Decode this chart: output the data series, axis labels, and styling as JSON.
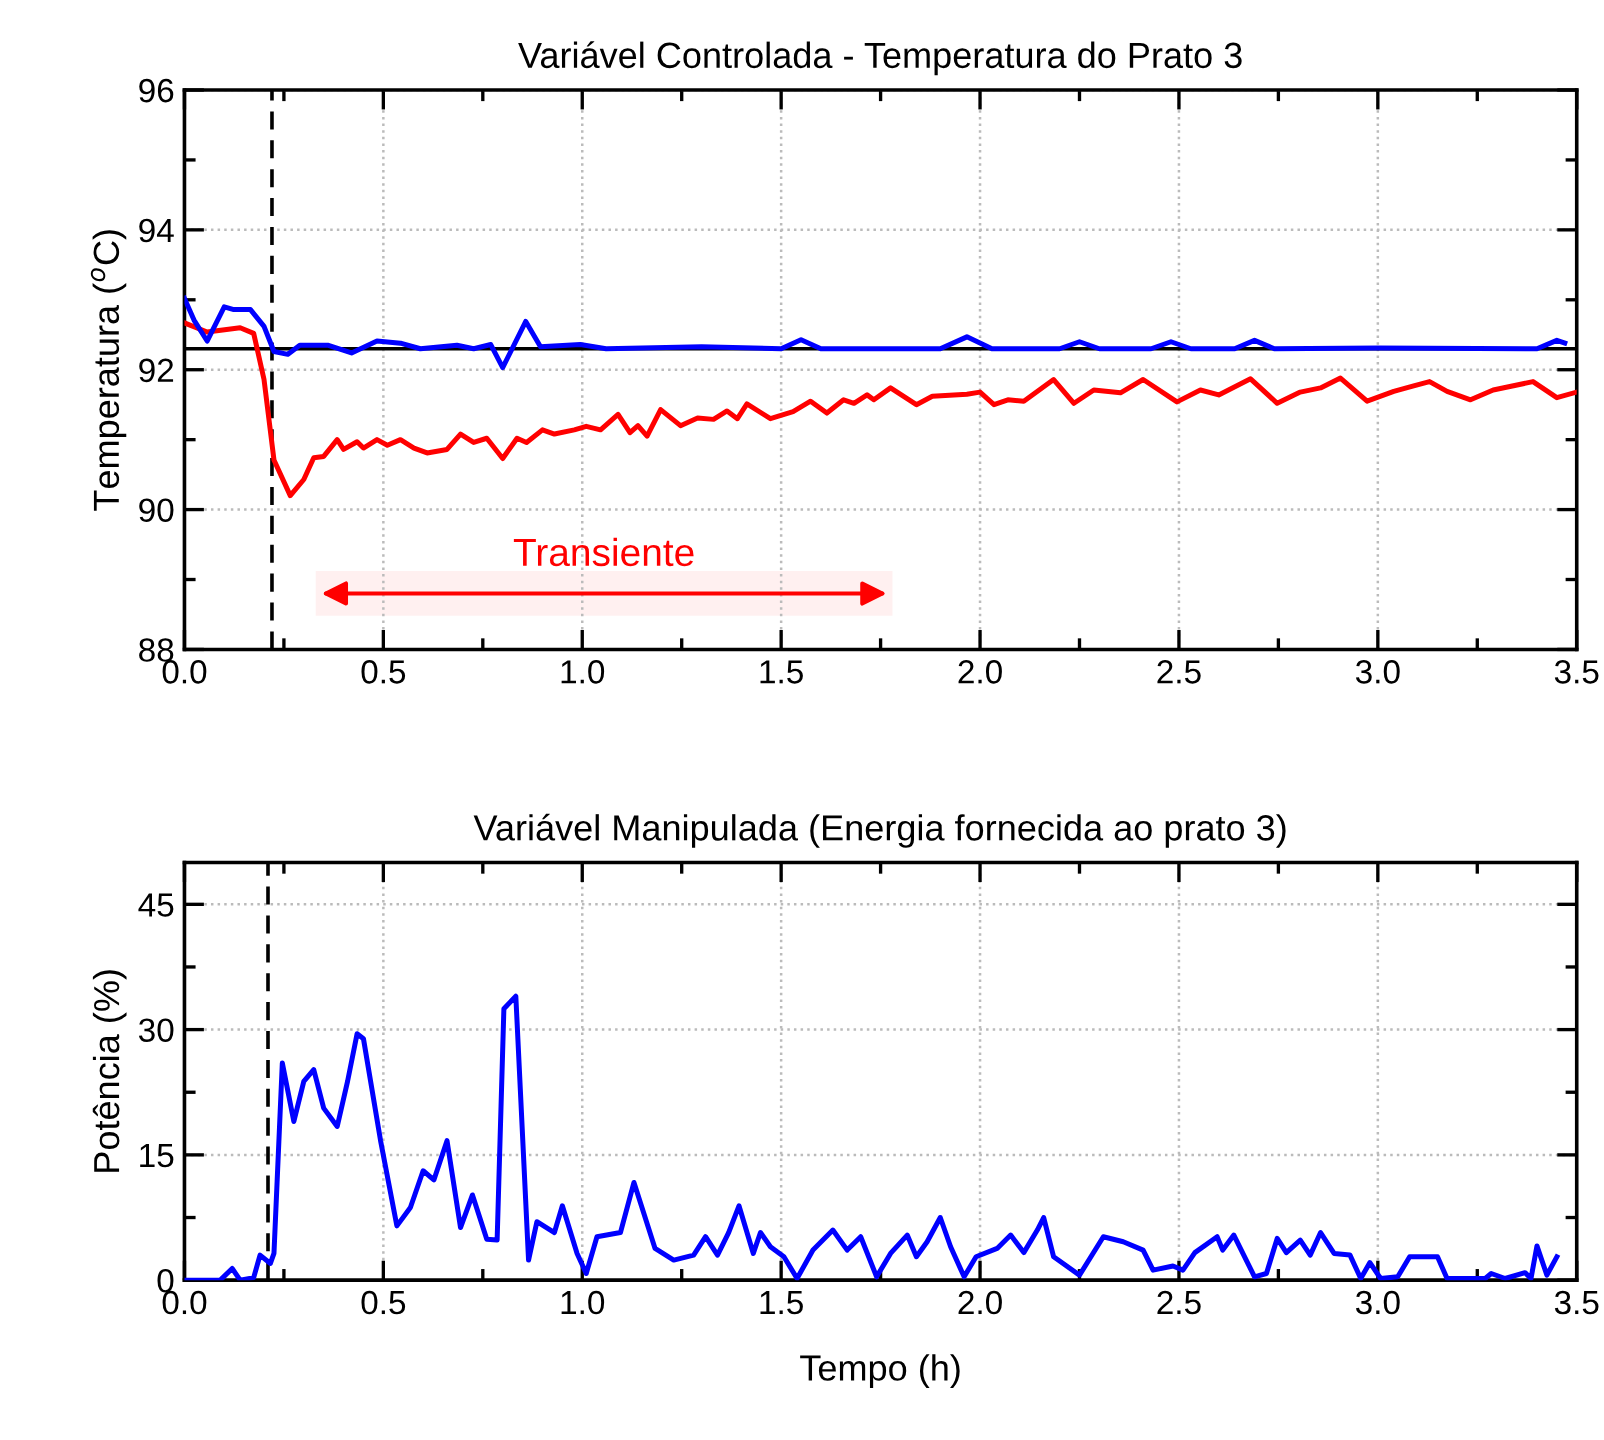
{
  "chart_data": [
    {
      "type": "line",
      "title": "Variável Controlada - Temperatura do Prato 3",
      "ylabel": "Temperatura ($^{o}$C)",
      "xlim": [
        0,
        3.5
      ],
      "xticks": [
        {
          "value": 0,
          "label": "0.0"
        },
        0.5,
        {
          "value": 1,
          "label": "1.0"
        },
        1.5,
        {
          "value": 2,
          "label": "2.0"
        },
        2.5,
        {
          "value": 3,
          "label": "3.0"
        },
        3.5
      ],
      "ylim": [
        88,
        96
      ],
      "yticks": [
        88,
        90,
        92,
        94,
        96
      ],
      "grid": true,
      "line_style": "solid",
      "marker": "none",
      "series": [
        {
          "color": "#ff0000",
          "x": [
            0,
            0.057,
            0.14,
            0.174,
            0.2,
            0.225,
            0.266,
            0.3,
            0.325,
            0.35,
            0.384,
            0.4,
            0.434,
            0.45,
            0.484,
            0.51,
            0.543,
            0.577,
            0.61,
            0.66,
            0.694,
            0.727,
            0.76,
            0.8,
            0.836,
            0.86,
            0.9,
            0.93,
            0.98,
            1.01,
            1.046,
            1.09,
            1.12,
            1.14,
            1.163,
            1.197,
            1.247,
            1.29,
            1.33,
            1.364,
            1.39,
            1.414,
            1.473,
            1.53,
            1.574,
            1.615,
            1.657,
            1.683,
            1.716,
            1.733,
            1.775,
            1.84,
            1.88,
            1.967,
            2.0,
            2.035,
            2.07,
            2.11,
            2.185,
            2.236,
            2.286,
            2.353,
            2.41,
            2.495,
            2.554,
            2.6,
            2.68,
            2.747,
            2.805,
            2.856,
            2.906,
            2.973,
            3.04,
            3.09,
            3.13,
            3.174,
            3.233,
            3.29,
            3.39,
            3.45,
            3.5
          ],
          "values": [
            92.67,
            92.54,
            92.6,
            92.52,
            91.86,
            90.71,
            90.2,
            90.43,
            90.74,
            90.76,
            91.0,
            90.86,
            90.97,
            90.88,
            91.0,
            90.92,
            91.0,
            90.88,
            90.81,
            90.86,
            91.08,
            90.96,
            91.02,
            90.73,
            91.02,
            90.96,
            91.14,
            91.08,
            91.14,
            91.19,
            91.14,
            91.36,
            91.1,
            91.2,
            91.05,
            91.43,
            91.2,
            91.31,
            91.29,
            91.41,
            91.3,
            91.51,
            91.3,
            91.4,
            91.55,
            91.38,
            91.57,
            91.52,
            91.64,
            91.57,
            91.74,
            91.5,
            91.62,
            91.65,
            91.68,
            91.5,
            91.57,
            91.55,
            91.86,
            91.52,
            91.71,
            91.67,
            91.86,
            91.54,
            91.71,
            91.64,
            91.87,
            91.52,
            91.68,
            91.74,
            91.88,
            91.55,
            91.69,
            91.77,
            91.83,
            91.69,
            91.57,
            91.71,
            91.83,
            91.6,
            91.68
          ]
        },
        {
          "color": "#0000ff",
          "x": [
            0,
            0.024,
            0.057,
            0.1,
            0.124,
            0.166,
            0.2,
            0.225,
            0.26,
            0.29,
            0.36,
            0.42,
            0.484,
            0.543,
            0.593,
            0.685,
            0.727,
            0.77,
            0.8,
            0.858,
            0.895,
            0.995,
            1.06,
            1.3,
            1.5,
            1.55,
            1.6,
            1.9,
            1.967,
            2.03,
            2.2,
            2.25,
            2.3,
            2.43,
            2.48,
            2.53,
            2.64,
            2.69,
            2.74,
            3.0,
            3.4,
            3.45,
            3.47
          ],
          "values": [
            93.02,
            92.71,
            92.41,
            92.9,
            92.86,
            92.86,
            92.62,
            92.26,
            92.22,
            92.35,
            92.35,
            92.24,
            92.41,
            92.38,
            92.3,
            92.35,
            92.3,
            92.36,
            92.03,
            92.69,
            92.33,
            92.36,
            92.3,
            92.33,
            92.3,
            92.43,
            92.3,
            92.3,
            92.47,
            92.3,
            92.3,
            92.4,
            92.3,
            92.3,
            92.4,
            92.3,
            92.3,
            92.42,
            92.3,
            92.31,
            92.3,
            92.42,
            92.38
          ]
        }
      ],
      "ref_lines": [
        {
          "axis": "y",
          "value": 92.3,
          "color": "#000000",
          "line_style": "solid"
        },
        {
          "axis": "x",
          "value": 0.22,
          "color": "#000000",
          "line_style": "dashed"
        }
      ],
      "bands": [
        {
          "axis": "x",
          "from": 0.33,
          "to": 1.78,
          "label": "Transiente",
          "color": "#ff0000"
        }
      ]
    },
    {
      "type": "line",
      "title": "Variável Manipulada (Energia fornecida ao prato 3)",
      "xlabel": "Tempo (h)",
      "ylabel": "Potência (%)",
      "xlim": [
        0,
        3.5
      ],
      "xticks": [
        {
          "value": 0,
          "label": "0.0"
        },
        0.5,
        {
          "value": 1,
          "label": "1.0"
        },
        1.5,
        {
          "value": 2,
          "label": "2.0"
        },
        2.5,
        {
          "value": 3,
          "label": "3.0"
        },
        3.5
      ],
      "ylim": [
        0,
        50
      ],
      "yticks": [
        0,
        15,
        30,
        45
      ],
      "grid": true,
      "line_style": "solid",
      "marker": "none",
      "series": [
        {
          "color": "#0000ff",
          "x": [
            0,
            0.09,
            0.12,
            0.14,
            0.174,
            0.19,
            0.216,
            0.225,
            0.246,
            0.275,
            0.3,
            0.325,
            0.35,
            0.384,
            0.41,
            0.434,
            0.45,
            0.493,
            0.534,
            0.568,
            0.6,
            0.627,
            0.66,
            0.694,
            0.724,
            0.76,
            0.786,
            0.803,
            0.833,
            0.865,
            0.886,
            0.93,
            0.95,
            0.987,
            1.01,
            1.037,
            1.096,
            1.13,
            1.183,
            1.23,
            1.28,
            1.31,
            1.34,
            1.368,
            1.394,
            1.43,
            1.448,
            1.473,
            1.507,
            1.54,
            1.58,
            1.63,
            1.666,
            1.7,
            1.74,
            1.775,
            1.817,
            1.84,
            1.867,
            1.9,
            1.926,
            1.96,
            1.99,
            2.043,
            2.077,
            2.11,
            2.144,
            2.16,
            2.185,
            2.25,
            2.31,
            2.36,
            2.41,
            2.435,
            2.485,
            2.51,
            2.54,
            2.596,
            2.61,
            2.638,
            2.69,
            2.72,
            2.747,
            2.77,
            2.805,
            2.83,
            2.856,
            2.89,
            2.93,
            2.957,
            2.98,
            3.007,
            3.05,
            3.08,
            3.15,
            3.174,
            3.27,
            3.285,
            3.32,
            3.37,
            3.385,
            3.4,
            3.425,
            3.45
          ],
          "values": [
            0,
            0,
            1.4,
            0,
            0.3,
            3.0,
            2.0,
            3.2,
            26,
            19,
            23.8,
            25.2,
            20.6,
            18.4,
            23.8,
            29.5,
            28.9,
            16.7,
            6.5,
            8.7,
            13.1,
            12.0,
            16.7,
            6.3,
            10.2,
            4.9,
            4.8,
            32.5,
            34,
            2.4,
            7.0,
            5.7,
            8.9,
            3.2,
            0.8,
            5.2,
            5.7,
            11.7,
            3.8,
            2.4,
            3.0,
            5.2,
            3.0,
            5.7,
            8.9,
            3.2,
            5.7,
            4.0,
            2.8,
            0.2,
            3.6,
            6.0,
            3.6,
            5.2,
            0.4,
            3.2,
            5.4,
            2.8,
            4.6,
            7.5,
            4.0,
            0.4,
            2.8,
            3.8,
            5.4,
            3.3,
            6.0,
            7.5,
            2.8,
            0.6,
            5.2,
            4.6,
            3.6,
            1.2,
            1.7,
            1.2,
            3.3,
            5.2,
            3.6,
            5.4,
            0.4,
            0.8,
            5.0,
            3.3,
            4.8,
            3.0,
            5.7,
            3.2,
            3.0,
            0.2,
            2.1,
            0.2,
            0.4,
            2.8,
            2.8,
            0.2,
            0.2,
            0.8,
            0.2,
            0.9,
            0.2,
            4.1,
            0.6,
            2.8
          ]
        }
      ],
      "ref_lines": [
        {
          "axis": "x",
          "value": 0.21,
          "color": "#000000",
          "line_style": "dashed"
        }
      ]
    }
  ]
}
